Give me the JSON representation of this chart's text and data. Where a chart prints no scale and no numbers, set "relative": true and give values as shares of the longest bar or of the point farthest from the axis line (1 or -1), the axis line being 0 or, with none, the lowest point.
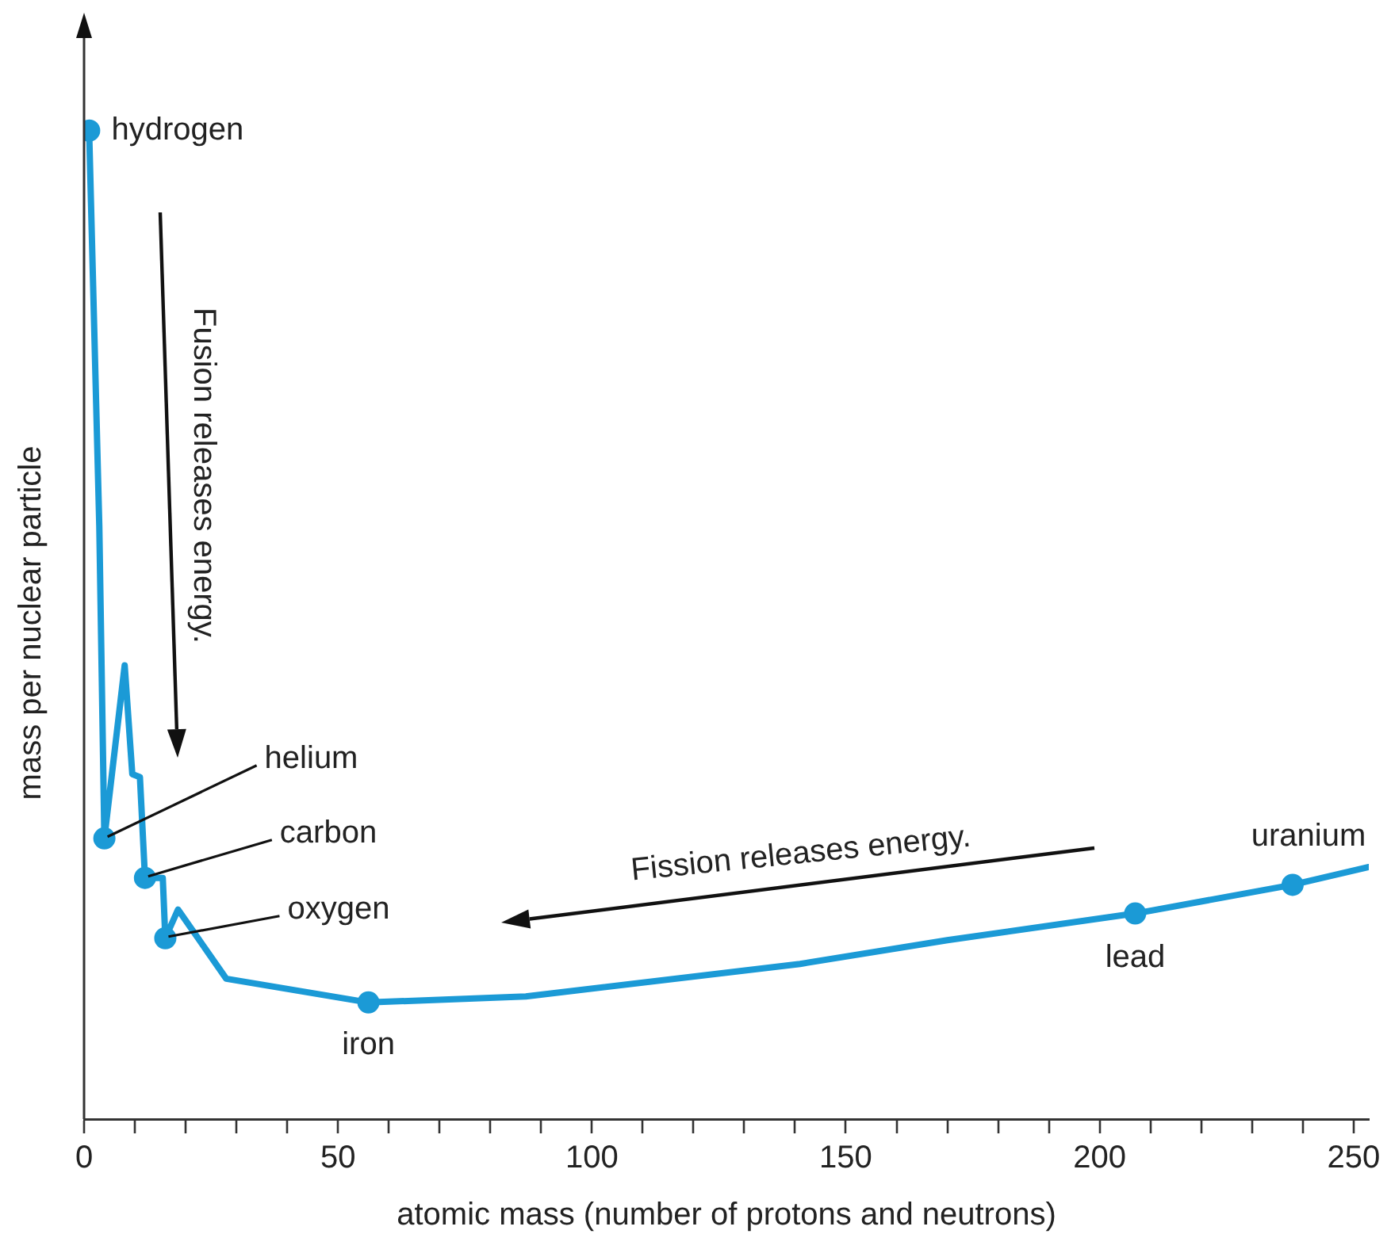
{
  "chart_data": {
    "type": "line",
    "xlabel": "atomic mass (number of protons and neutrons)",
    "ylabel": "mass per nuclear particle",
    "relative": true,
    "xlim": [
      0,
      253
    ],
    "xticks": [
      {
        "value": 0,
        "label": "0"
      },
      {
        "value": 10,
        "label": null
      },
      {
        "value": 20,
        "label": null
      },
      {
        "value": 30,
        "label": null
      },
      {
        "value": 40,
        "label": null
      },
      {
        "value": 50,
        "label": "50"
      },
      {
        "value": 60,
        "label": null
      },
      {
        "value": 70,
        "label": null
      },
      {
        "value": 80,
        "label": null
      },
      {
        "value": 90,
        "label": null
      },
      {
        "value": 100,
        "label": "100"
      },
      {
        "value": 110,
        "label": null
      },
      {
        "value": 120,
        "label": null
      },
      {
        "value": 130,
        "label": null
      },
      {
        "value": 140,
        "label": null
      },
      {
        "value": 150,
        "label": "150"
      },
      {
        "value": 160,
        "label": null
      },
      {
        "value": 170,
        "label": null
      },
      {
        "value": 180,
        "label": null
      },
      {
        "value": 190,
        "label": null
      },
      {
        "value": 200,
        "label": "200"
      },
      {
        "value": 210,
        "label": null
      },
      {
        "value": 220,
        "label": null
      },
      {
        "value": 230,
        "label": null
      },
      {
        "value": 240,
        "label": null
      },
      {
        "value": 250,
        "label": "250"
      }
    ],
    "series": [
      {
        "type": "line",
        "color": "#1b9ad6",
        "x": [
          1,
          3,
          4,
          8,
          9.5,
          11,
          12,
          15.5,
          16,
          18.5,
          28,
          56,
          87,
          141,
          170,
          207,
          238,
          253
        ],
        "values": [
          1,
          0.6,
          0.284,
          0.459,
          0.349,
          0.346,
          0.244,
          0.244,
          0.183,
          0.212,
          0.142,
          0.118,
          0.124,
          0.157,
          0.181,
          0.208,
          0.237,
          0.255
        ]
      },
      {
        "type": "scatter",
        "color": "#1b9ad6",
        "x": [
          1,
          4,
          12,
          16,
          56,
          207,
          238
        ],
        "values": [
          1,
          0.284,
          0.244,
          0.183,
          0.118,
          0.208,
          0.237
        ]
      }
    ],
    "annotations": [
      {
        "text": "hydrogen",
        "x": 1,
        "y": 1
      },
      {
        "text": "helium",
        "x": 4,
        "y": 0.284
      },
      {
        "text": "carbon",
        "x": 12,
        "y": 0.244
      },
      {
        "text": "oxygen",
        "x": 16,
        "y": 0.183
      },
      {
        "text": "iron",
        "x": 56,
        "y": 0.118
      },
      {
        "text": "lead",
        "x": 207,
        "y": 0.208
      },
      {
        "text": "uranium",
        "x": 238,
        "y": 0.237
      },
      "Fusion releases energy.",
      "Fission releases energy."
    ]
  }
}
